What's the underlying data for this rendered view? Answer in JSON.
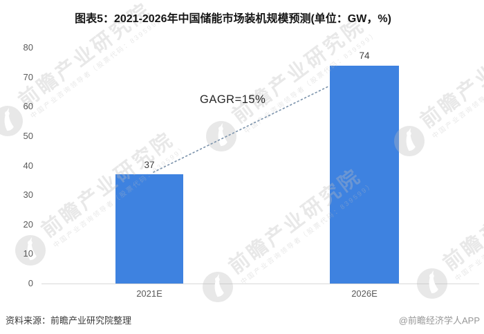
{
  "title": "图表5：2021-2026年中国储能市场装机规模预测(单位：GW，%)",
  "chart_data": {
    "type": "bar",
    "categories": [
      "2021E",
      "2026E"
    ],
    "values": [
      37,
      74
    ],
    "title": "图表5：2021-2026年中国储能市场装机规模预测(单位：GW，%)",
    "xlabel": "",
    "ylabel": "",
    "unit": "GW",
    "annotation": "GAGR=15%",
    "ylim": [
      0,
      80
    ],
    "yticks": [
      0,
      10,
      20,
      30,
      40,
      50,
      60,
      70,
      80
    ],
    "grid": "off",
    "legend": "none",
    "bar_color": "#3E82E0",
    "trendline": {
      "style": "dotted",
      "from_category": "2021E",
      "to_category": "2026E",
      "color": "#7e95ad"
    }
  },
  "footer": {
    "source": "资料来源：前瞻产业研究院整理",
    "credit": "@前瞻经济学人APP"
  },
  "watermark": {
    "main": "前瞻产业研究院",
    "sub": "中国产业咨询领导者（股票代码：839599）",
    "logo_icon": "qianzhan-logo"
  }
}
